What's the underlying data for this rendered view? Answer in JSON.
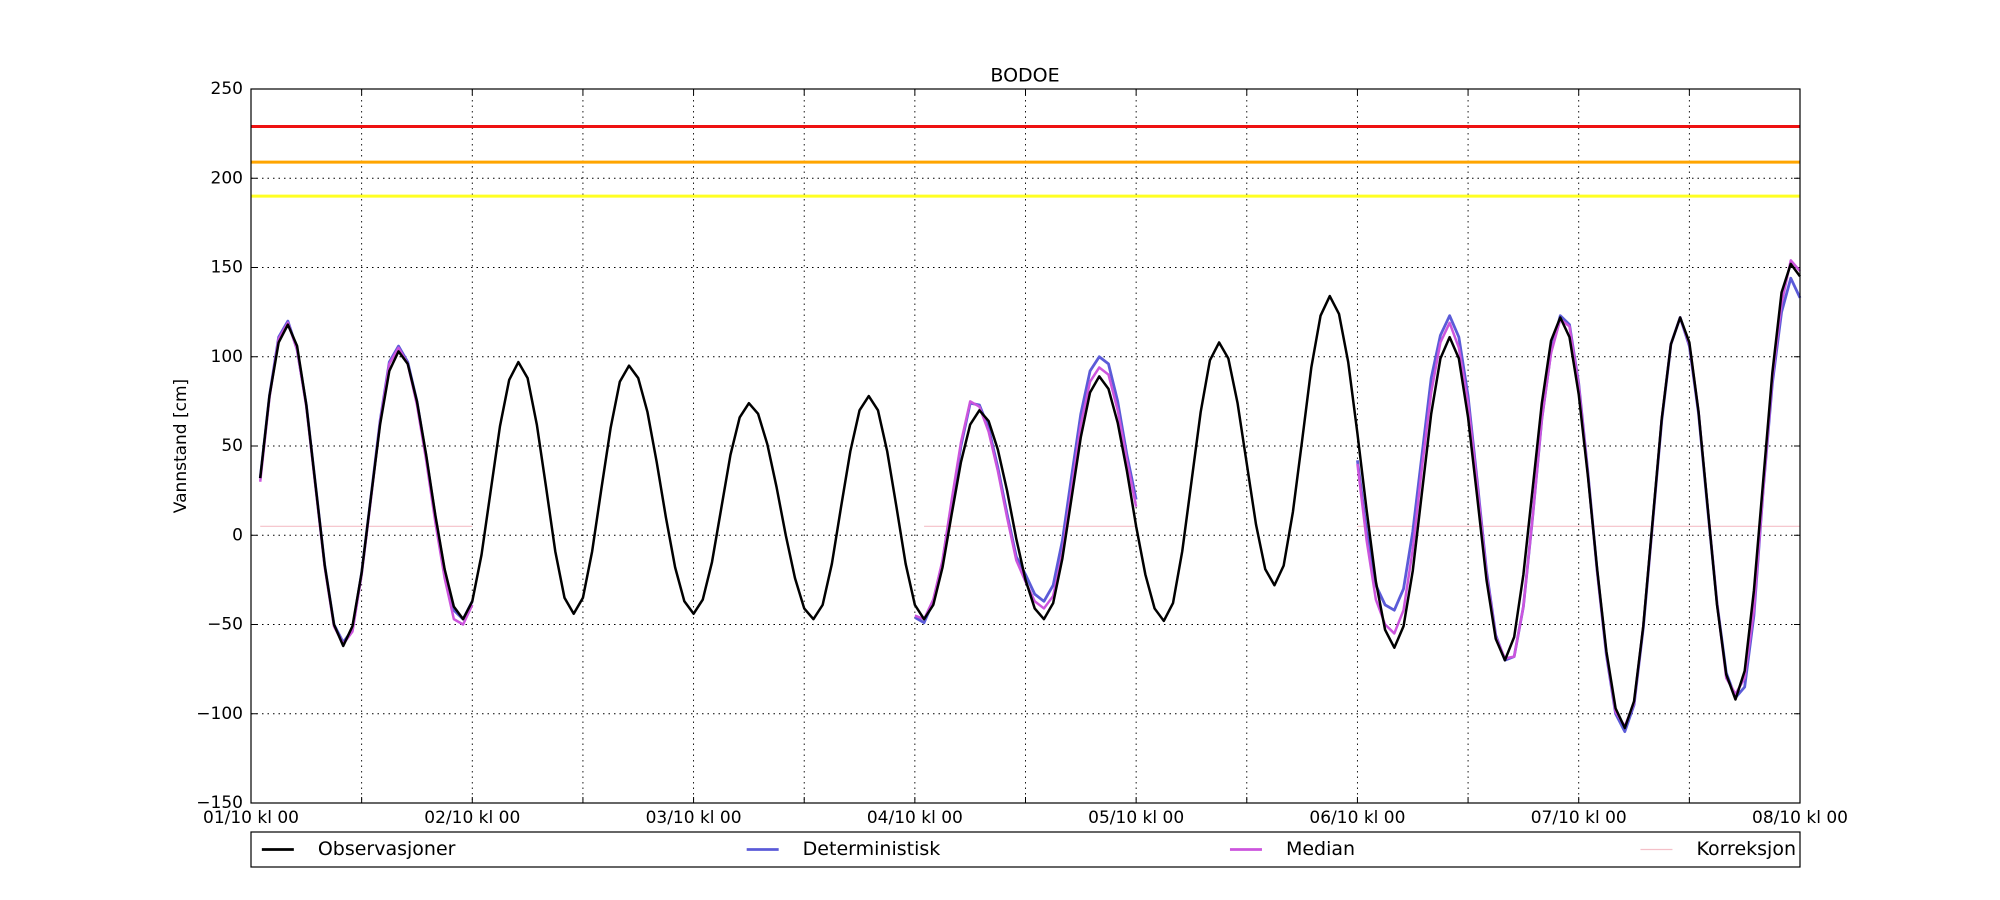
{
  "chart_data": {
    "type": "line",
    "title": "BODOE",
    "ylabel": "Vannstand [cm]",
    "x": [
      1,
      2,
      3,
      4,
      5,
      6,
      7,
      8,
      9,
      10,
      11,
      12,
      13,
      14,
      15,
      16,
      17,
      18,
      19,
      20,
      21,
      22,
      23,
      24,
      25,
      26,
      27,
      28,
      29,
      30,
      31,
      32,
      33,
      34,
      35,
      36,
      37,
      38,
      39,
      40,
      41,
      42,
      43,
      44,
      45,
      46,
      47,
      48,
      49,
      50,
      51,
      52,
      53,
      54,
      55,
      56,
      57,
      58,
      59,
      60,
      61,
      62,
      63,
      64,
      65,
      66,
      67,
      68,
      69,
      70,
      71,
      72,
      73,
      74,
      75,
      76,
      77,
      78,
      79,
      80,
      81,
      82,
      83,
      84,
      85,
      86,
      87,
      88,
      89,
      90,
      91,
      92,
      93,
      94,
      95,
      96,
      97,
      98,
      99,
      100,
      101,
      102,
      103,
      104,
      105,
      106,
      107,
      108,
      109,
      110,
      111,
      112,
      113,
      114,
      115,
      116,
      117,
      118,
      119,
      120,
      121,
      122,
      123,
      124,
      125,
      126,
      127,
      128,
      129,
      130,
      131,
      132,
      133,
      134,
      135,
      136,
      137,
      138,
      139,
      140,
      141,
      142,
      143,
      144,
      145,
      146,
      147,
      148,
      149,
      150,
      151,
      152,
      153,
      154,
      155,
      156,
      157,
      158,
      159,
      160,
      161,
      162,
      163,
      164,
      165,
      166,
      167,
      168
    ],
    "xlim": [
      0,
      168
    ],
    "xticks": [
      {
        "value": 0,
        "label": "01/10 kl 00"
      },
      {
        "value": 24,
        "label": "02/10 kl 00"
      },
      {
        "value": 48,
        "label": "03/10 kl 00"
      },
      {
        "value": 72,
        "label": "04/10 kl 00"
      },
      {
        "value": 96,
        "label": "05/10 kl 00"
      },
      {
        "value": 120,
        "label": "06/10 kl 00"
      },
      {
        "value": 144,
        "label": "07/10 kl 00"
      },
      {
        "value": 168,
        "label": "08/10 kl 00"
      }
    ],
    "xticks_minor": [
      12,
      36,
      60,
      84,
      108,
      132,
      156
    ],
    "ylim": [
      -150,
      250
    ],
    "yticks": [
      {
        "value": -150,
        "label": "−150"
      },
      {
        "value": -100,
        "label": "−100"
      },
      {
        "value": -50,
        "label": "−50"
      },
      0,
      50,
      100,
      150,
      200,
      250
    ],
    "grid": true,
    "legend": "bottom",
    "reference_lines": [
      {
        "value": 229,
        "color": "#ee1111"
      },
      {
        "value": 209,
        "color": "#ffa500"
      },
      {
        "value": 190,
        "color": "#ffff22"
      }
    ],
    "series": [
      {
        "name": "Observasjoner",
        "color": "#000000",
        "values": [
          32,
          78,
          108,
          118,
          106,
          73,
          28,
          -17,
          -50,
          -62,
          -51,
          -21,
          21,
          62,
          92,
          103,
          96,
          75,
          45,
          11,
          -19,
          -40,
          -47,
          -37,
          -11,
          25,
          61,
          87,
          97,
          88,
          62,
          27,
          -9,
          -35,
          -44,
          -35,
          -9,
          26,
          60,
          86,
          95,
          88,
          69,
          41,
          10,
          -18,
          -37,
          -44,
          -36,
          -15,
          15,
          45,
          66,
          74,
          68,
          51,
          27,
          0,
          -24,
          -41,
          -47,
          -39,
          -16,
          16,
          47,
          70,
          78,
          70,
          47,
          16,
          -16,
          -39,
          -47,
          -39,
          -18,
          12,
          41,
          62,
          70,
          64,
          48,
          25,
          -2,
          -25,
          -41,
          -47,
          -38,
          -13,
          21,
          55,
          80,
          89,
          82,
          63,
          36,
          5,
          -22,
          -41,
          -48,
          -38,
          -9,
          30,
          69,
          98,
          108,
          99,
          74,
          40,
          6,
          -19,
          -28,
          -17,
          13,
          53,
          94,
          123,
          134,
          124,
          97,
          57,
          14,
          -26,
          -53,
          -63,
          -51,
          -20,
          24,
          68,
          99,
          111,
          99,
          66,
          21,
          -25,
          -58,
          -70,
          -57,
          -22,
          26,
          74,
          109,
          122,
          111,
          79,
          33,
          -19,
          -65,
          -97,
          -108,
          -93,
          -51,
          7,
          65,
          107,
          122,
          108,
          69,
          15,
          -39,
          -78,
          -92,
          -76,
          -31,
          30,
          91,
          136,
          152,
          145
        ]
      },
      {
        "name": "Deterministisk",
        "color": "#5b5bd8",
        "values": [
          32,
          78,
          111,
          120,
          104,
          73,
          28,
          -17,
          -50,
          -60,
          -53,
          -21,
          21,
          64,
          97,
          106,
          97,
          75,
          44,
          10,
          -20,
          -42,
          -47,
          -37,
          null,
          null,
          null,
          null,
          null,
          null,
          null,
          null,
          null,
          null,
          null,
          null,
          null,
          null,
          null,
          null,
          null,
          null,
          null,
          null,
          null,
          null,
          null,
          null,
          null,
          null,
          null,
          null,
          null,
          null,
          null,
          null,
          null,
          null,
          null,
          null,
          null,
          null,
          null,
          null,
          null,
          null,
          null,
          null,
          null,
          null,
          null,
          -46,
          -49,
          -37,
          -15,
          18,
          50,
          74,
          73,
          60,
          38,
          12,
          -12,
          -22,
          -33,
          -37,
          -28,
          -3,
          33,
          68,
          92,
          100,
          96,
          75,
          45,
          20,
          null,
          null,
          null,
          null,
          null,
          null,
          null,
          null,
          null,
          null,
          null,
          null,
          null,
          null,
          null,
          null,
          null,
          null,
          null,
          null,
          null,
          null,
          null,
          42,
          2,
          -28,
          -39,
          -42,
          -30,
          2,
          45,
          88,
          112,
          123,
          111,
          78,
          30,
          -20,
          -56,
          -70,
          -68,
          -40,
          10,
          65,
          103,
          123,
          118,
          85,
          35,
          -20,
          -67,
          -100,
          -110,
          -95,
          -52,
          6,
          64,
          107,
          122,
          106,
          68,
          14,
          -38,
          -77,
          -91,
          -85,
          -45,
          25,
          85,
          125,
          144,
          133
        ]
      },
      {
        "name": "Median",
        "color": "#cc55dd",
        "values": [
          30,
          77,
          110,
          119,
          104,
          72,
          27,
          -18,
          -51,
          -61,
          -54,
          -22,
          20,
          63,
          96,
          105,
          96,
          73,
          42,
          7,
          -24,
          -47,
          -50,
          -39,
          null,
          null,
          null,
          null,
          null,
          null,
          null,
          null,
          null,
          null,
          null,
          null,
          null,
          null,
          null,
          null,
          null,
          null,
          null,
          null,
          null,
          null,
          null,
          null,
          null,
          null,
          null,
          null,
          null,
          null,
          null,
          null,
          null,
          null,
          null,
          null,
          null,
          null,
          null,
          null,
          null,
          null,
          null,
          null,
          null,
          null,
          null,
          -45,
          -47,
          -36,
          -14,
          20,
          52,
          75,
          72,
          58,
          36,
          10,
          -14,
          -26,
          -37,
          -41,
          -34,
          -10,
          26,
          62,
          86,
          94,
          90,
          70,
          42,
          16,
          null,
          null,
          null,
          null,
          null,
          null,
          null,
          null,
          null,
          null,
          null,
          null,
          null,
          null,
          null,
          null,
          null,
          null,
          null,
          null,
          null,
          null,
          null,
          40,
          -3,
          -36,
          -50,
          -55,
          -42,
          -8,
          38,
          80,
          108,
          119,
          105,
          74,
          28,
          -22,
          -57,
          -69,
          -68,
          -40,
          10,
          65,
          102,
          121,
          117,
          84,
          34,
          -20,
          -66,
          -99,
          -107,
          -94,
          -51,
          6,
          65,
          107,
          122,
          107,
          69,
          15,
          -38,
          -80,
          -89,
          -80,
          -42,
          25,
          88,
          130,
          154,
          148
        ]
      },
      {
        "name": "Korreksjon",
        "color": "#f4c0c8",
        "values": [
          5,
          5,
          5,
          5,
          5,
          5,
          5,
          5,
          5,
          5,
          5,
          5,
          5,
          5,
          5,
          5,
          5,
          5,
          5,
          5,
          5,
          5,
          5,
          5,
          null,
          null,
          null,
          null,
          null,
          null,
          null,
          null,
          null,
          null,
          null,
          null,
          null,
          null,
          null,
          null,
          null,
          null,
          null,
          null,
          null,
          null,
          null,
          null,
          null,
          null,
          null,
          null,
          null,
          null,
          null,
          null,
          null,
          null,
          null,
          null,
          null,
          null,
          null,
          null,
          null,
          null,
          null,
          null,
          null,
          null,
          null,
          null,
          5,
          5,
          5,
          5,
          5,
          5,
          5,
          5,
          5,
          5,
          5,
          5,
          5,
          5,
          5,
          5,
          5,
          5,
          5,
          5,
          5,
          5,
          5,
          5,
          null,
          null,
          null,
          null,
          null,
          null,
          null,
          null,
          null,
          null,
          null,
          null,
          null,
          null,
          null,
          null,
          null,
          null,
          null,
          null,
          null,
          null,
          null,
          5,
          5,
          5,
          5,
          5,
          5,
          5,
          5,
          5,
          5,
          5,
          5,
          5,
          5,
          5,
          5,
          5,
          5,
          5,
          5,
          5,
          5,
          5,
          5,
          5,
          5,
          5,
          5,
          5,
          5,
          5,
          5,
          5,
          5,
          5,
          5,
          5,
          5,
          5,
          5,
          5,
          5,
          5,
          5,
          5,
          5,
          5,
          5,
          5
        ]
      }
    ]
  }
}
